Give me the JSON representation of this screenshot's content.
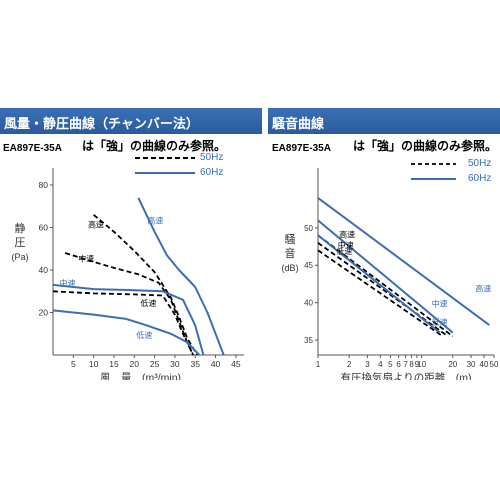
{
  "panels": [
    {
      "title": "風量・静圧曲線（チャンバー法）",
      "model": "EA897E-35A",
      "note": "は「強」の曲線のみ参照。"
    },
    {
      "title": "騒音曲線",
      "model": "EA897E-35A",
      "note": "は「強」の曲線のみ参照。"
    }
  ],
  "legend": {
    "series_50": "50Hz",
    "series_60": "60Hz"
  },
  "colors": {
    "band": "#2f62a8",
    "line_60": "#3b6fb5",
    "line_50": "#000000"
  },
  "chart_data": [
    {
      "type": "line",
      "title": "風量・静圧曲線（チャンバー法）",
      "xlabel": "風　量　(m³/min)",
      "ylabel": [
        "静",
        "圧",
        "(Pa)"
      ],
      "xlim": [
        0,
        47
      ],
      "ylim": [
        0,
        88
      ],
      "xticks": [
        5,
        10,
        15,
        20,
        25,
        30,
        35,
        40,
        45
      ],
      "yticks": [
        20,
        40,
        60,
        80
      ],
      "grid": false,
      "legend_position": "top-right",
      "annotations": [
        {
          "text": "高速",
          "x": 8.6,
          "y": 60,
          "color": "#000000"
        },
        {
          "text": "中速",
          "x": 6.2,
          "y": 44,
          "color": "#000000"
        },
        {
          "text": "低速",
          "x": 21.5,
          "y": 23,
          "color": "#000000"
        },
        {
          "text": "高速",
          "x": 23.2,
          "y": 62,
          "color": "#3b6fb5"
        },
        {
          "text": "中速",
          "x": 1.6,
          "y": 32.5,
          "color": "#3b6fb5"
        },
        {
          "text": "低速",
          "x": 20.5,
          "y": 8,
          "color": "#3b6fb5"
        }
      ],
      "series": [
        {
          "name": "50Hz",
          "speed": "高速",
          "values": [
            [
              10,
              66
            ],
            [
              15,
              58
            ],
            [
              20,
              49
            ],
            [
              25,
              39
            ],
            [
              29,
              27
            ],
            [
              31,
              18
            ],
            [
              33,
              8
            ],
            [
              35.5,
              0
            ]
          ]
        },
        {
          "name": "50Hz",
          "speed": "中速",
          "values": [
            [
              3,
              48
            ],
            [
              8,
              45
            ],
            [
              15,
              41
            ],
            [
              21,
              38
            ],
            [
              26,
              34
            ],
            [
              29,
              26
            ],
            [
              31,
              16
            ],
            [
              33,
              6
            ],
            [
              34.5,
              0
            ]
          ]
        },
        {
          "name": "50Hz",
          "speed": "低速",
          "values": [
            [
              0,
              30
            ],
            [
              10,
              29
            ],
            [
              20,
              28.5
            ],
            [
              27,
              28
            ],
            [
              30,
              19
            ],
            [
              32,
              10
            ],
            [
              34,
              2
            ],
            [
              34.5,
              0
            ]
          ]
        },
        {
          "name": "60Hz",
          "speed": "高速",
          "values": [
            [
              21,
              74
            ],
            [
              25,
              58
            ],
            [
              28,
              47
            ],
            [
              31,
              40
            ],
            [
              35,
              32
            ],
            [
              38,
              20
            ],
            [
              40,
              10
            ],
            [
              42,
              0
            ]
          ]
        },
        {
          "name": "60Hz",
          "speed": "中速",
          "values": [
            [
              0,
              33
            ],
            [
              10,
              31
            ],
            [
              20,
              30.5
            ],
            [
              27,
              30
            ],
            [
              32,
              26
            ],
            [
              35,
              14
            ],
            [
              37,
              0
            ]
          ]
        },
        {
          "name": "60Hz",
          "speed": "低速",
          "values": [
            [
              0,
              21
            ],
            [
              10,
              19
            ],
            [
              18,
              17
            ],
            [
              23,
              14
            ],
            [
              29,
              10
            ],
            [
              33,
              6
            ],
            [
              36,
              0
            ]
          ]
        }
      ]
    },
    {
      "type": "line",
      "title": "騒音曲線",
      "xlabel": "有圧換気扇よりの距離　(m)",
      "ylabel": [
        "騒",
        "音",
        "(dB)"
      ],
      "xscale": "log",
      "xlim": [
        1,
        50
      ],
      "ylim": [
        33,
        58
      ],
      "xticks": [
        1,
        2,
        3,
        4,
        5,
        6,
        7,
        8,
        9,
        10,
        20,
        30,
        40,
        50
      ],
      "yticks": [
        35,
        40,
        45,
        50
      ],
      "grid": false,
      "legend_position": "top-right",
      "annotations": [
        {
          "text": "高速",
          "x": 1.6,
          "y": 48.7,
          "color": "#000000"
        },
        {
          "text": "中速",
          "x": 1.55,
          "y": 47.3,
          "color": "#000000"
        },
        {
          "text": "低速",
          "x": 1.5,
          "y": 46.5,
          "color": "#000000"
        },
        {
          "text": "高速",
          "x": 33,
          "y": 41.5,
          "color": "#3b6fb5"
        },
        {
          "text": "中速",
          "x": 12.5,
          "y": 39.5,
          "color": "#3b6fb5"
        },
        {
          "text": "低速",
          "x": 12.5,
          "y": 37,
          "color": "#3b6fb5"
        }
      ],
      "series": [
        {
          "name": "50Hz",
          "speed": "高速",
          "values": [
            [
              1,
              49
            ],
            [
              20,
              35.5
            ]
          ]
        },
        {
          "name": "50Hz",
          "speed": "中速",
          "values": [
            [
              1,
              48
            ],
            [
              18,
              35.5
            ]
          ]
        },
        {
          "name": "50Hz",
          "speed": "低速",
          "values": [
            [
              1,
              47
            ],
            [
              16,
              35.5
            ]
          ]
        },
        {
          "name": "60Hz",
          "speed": "高速",
          "values": [
            [
              1,
              54
            ],
            [
              45,
              37
            ]
          ]
        },
        {
          "name": "60Hz",
          "speed": "中速",
          "values": [
            [
              1,
              51
            ],
            [
              20,
              36
            ]
          ]
        },
        {
          "name": "60Hz",
          "speed": "低速",
          "values": [
            [
              1,
              49
            ],
            [
              15,
              36
            ]
          ]
        }
      ]
    }
  ]
}
